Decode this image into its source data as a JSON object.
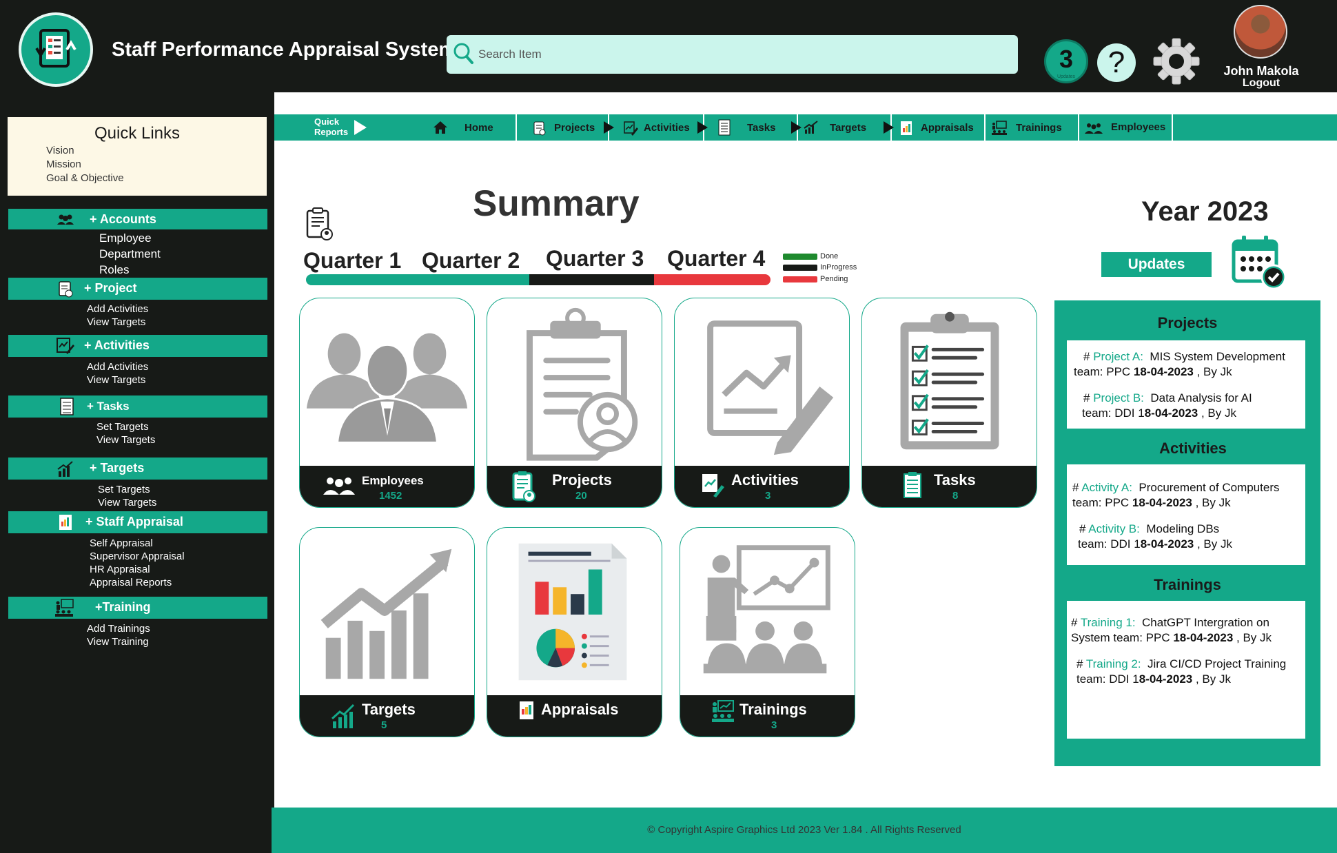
{
  "header": {
    "title": "Staff Performance Appraisal System",
    "search_placeholder": "Search Item",
    "notifications": {
      "count": "3",
      "label": "Updates"
    },
    "help_symbol": "?",
    "user": {
      "name": "John Makola",
      "logout": "Logout"
    }
  },
  "sidebar": {
    "quick_links": {
      "title": "Quick Links",
      "items": [
        "Vision",
        "Mission",
        "Goal & Objective"
      ]
    },
    "menus": [
      {
        "icon": "users-icon",
        "label": "+ Accounts",
        "items": [
          "Employee",
          "Department",
          "Roles"
        ]
      },
      {
        "icon": "clipboard-user-icon",
        "label": "+  Project",
        "items": [
          "Add Activities",
          "View Targets"
        ]
      },
      {
        "icon": "chart-pen-icon",
        "label": "+  Activities",
        "items": [
          "Add Activities",
          "View Targets"
        ]
      },
      {
        "icon": "task-list-icon",
        "label": "+ Tasks",
        "items": [
          "Set Targets",
          "View Targets"
        ]
      },
      {
        "icon": "growth-chart-icon",
        "label": "+  Targets",
        "items": [
          "Set Targets",
          "View Targets"
        ]
      },
      {
        "icon": "report-icon",
        "label": "+ Staff Appraisal",
        "items": [
          "Self Appraisal",
          "Supervisor Appraisal",
          "HR Appraisal",
          "Appraisal Reports"
        ]
      },
      {
        "icon": "training-icon",
        "label": "+Training",
        "items": [
          "Add Trainings",
          "View Training"
        ]
      }
    ]
  },
  "nav": {
    "quick_reports": [
      "Quick",
      "Reports"
    ],
    "items": [
      "Home",
      "Projects",
      "Activities",
      "Tasks",
      "Targets",
      "Appraisals",
      "Trainings",
      "Employees"
    ]
  },
  "summary": {
    "title": "Summary",
    "quarters": [
      "Quarter 1",
      "Quarter 2",
      "Quarter 3",
      "Quarter 4"
    ],
    "progress": {
      "done": 0.48,
      "in_progress": 0.27,
      "pending": 0.25
    },
    "legend": [
      "Done",
      "InProgress",
      "Pending"
    ],
    "colors": {
      "done": "#14a889",
      "in_progress": "#171a17",
      "pending": "#e8383d",
      "legend_done": "#1e8a2e"
    }
  },
  "year": {
    "title": "Year 2023",
    "updates_button": "Updates"
  },
  "cards": [
    {
      "label": "Employees",
      "count": "1452"
    },
    {
      "label": "Projects",
      "count": "20"
    },
    {
      "label": "Activities",
      "count": "3"
    },
    {
      "label": "Tasks",
      "count": "8"
    },
    {
      "label": "Targets",
      "count": "5"
    },
    {
      "label": "Appraisals",
      "count": ""
    },
    {
      "label": "Trainings",
      "count": "3"
    }
  ],
  "panel": {
    "projects": {
      "title": "Projects",
      "entries": [
        {
          "hash": "# ",
          "name": "Project A:",
          "desc": "MIS System Development",
          "team": "team: PPC ",
          "date": "18-04-2023",
          "by": " , By Jk"
        },
        {
          "hash": "# ",
          "name": "Project B:",
          "desc": "Data Analysis for AI",
          "team": "team: DDI ",
          "date_prefix": "1",
          "date": "8-04-2023",
          "by": " , By Jk"
        }
      ]
    },
    "activities": {
      "title": "Activities",
      "entries": [
        {
          "hash": "# ",
          "name": "Activity A:",
          "desc": "Procurement of Computers",
          "team": "team: PPC ",
          "date": "18-04-2023",
          "by": " , By Jk"
        },
        {
          "hash": "# ",
          "name": "Activity B:",
          "desc": "Modeling DBs",
          "team": "team: DDI ",
          "date_prefix": "1",
          "date": "8-04-2023",
          "by": " , By Jk"
        }
      ]
    },
    "trainings": {
      "title": "Trainings",
      "entries": [
        {
          "hash": "# ",
          "name": "Training 1:",
          "desc": "ChatGPT Intergration on",
          "desc2": "System",
          "team": " team: PPC ",
          "date": "18-04-2023",
          "by": " , By Jk"
        },
        {
          "hash": "# ",
          "name": "Training 2:",
          "desc": "Jira CI/CD Project Training",
          "team": "team: DDI ",
          "date_prefix": "1",
          "date": "8-04-2023",
          "by": " , By Jk"
        }
      ]
    }
  },
  "footer": {
    "copyright": "© Copyright Aspire Graphics Ltd 2023 Ver 1.84 . All Rights Reserved"
  }
}
